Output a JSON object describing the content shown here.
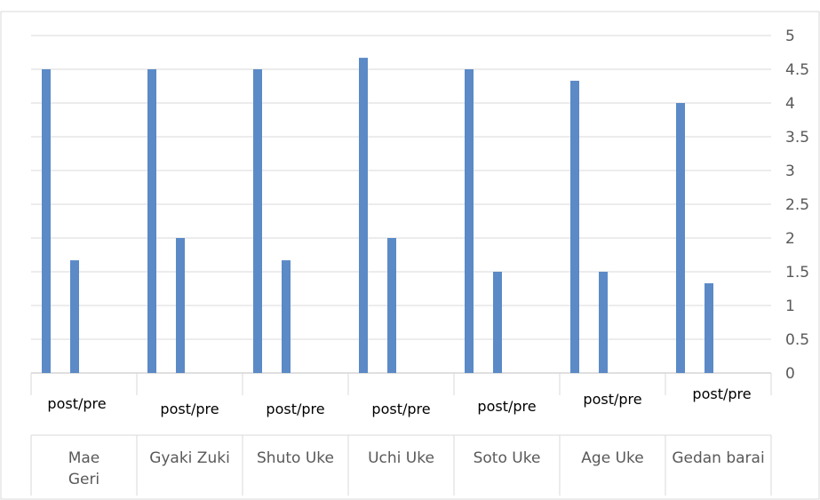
{
  "chart_data": {
    "type": "bar",
    "title": "",
    "xlabel": "",
    "ylabel": "",
    "ylim": [
      0,
      5
    ],
    "y_ticks": [
      "0",
      "0.5",
      "1",
      "1.5",
      "2",
      "2.5",
      "3",
      "3.5",
      "4",
      "4.5",
      "5"
    ],
    "y_axis_side": "right",
    "grid": true,
    "legend": "none",
    "bar_color": "#5B8AC7",
    "groups": [
      "Mae Geri",
      "Gyaki Zuki",
      "Shuto Uke",
      "Uchi Uke",
      "Soto Uke",
      "Age Uke",
      "Gedan barai"
    ],
    "sub_categories": [
      "post",
      "pre"
    ],
    "category_label": "post/pre",
    "series": [
      {
        "values": [
          4.5,
          4.5,
          4.5,
          4.67,
          4.5,
          4.33,
          4.0
        ]
      },
      {
        "values": [
          1.67,
          2.0,
          1.67,
          2.0,
          1.5,
          1.5,
          1.33
        ]
      }
    ]
  }
}
